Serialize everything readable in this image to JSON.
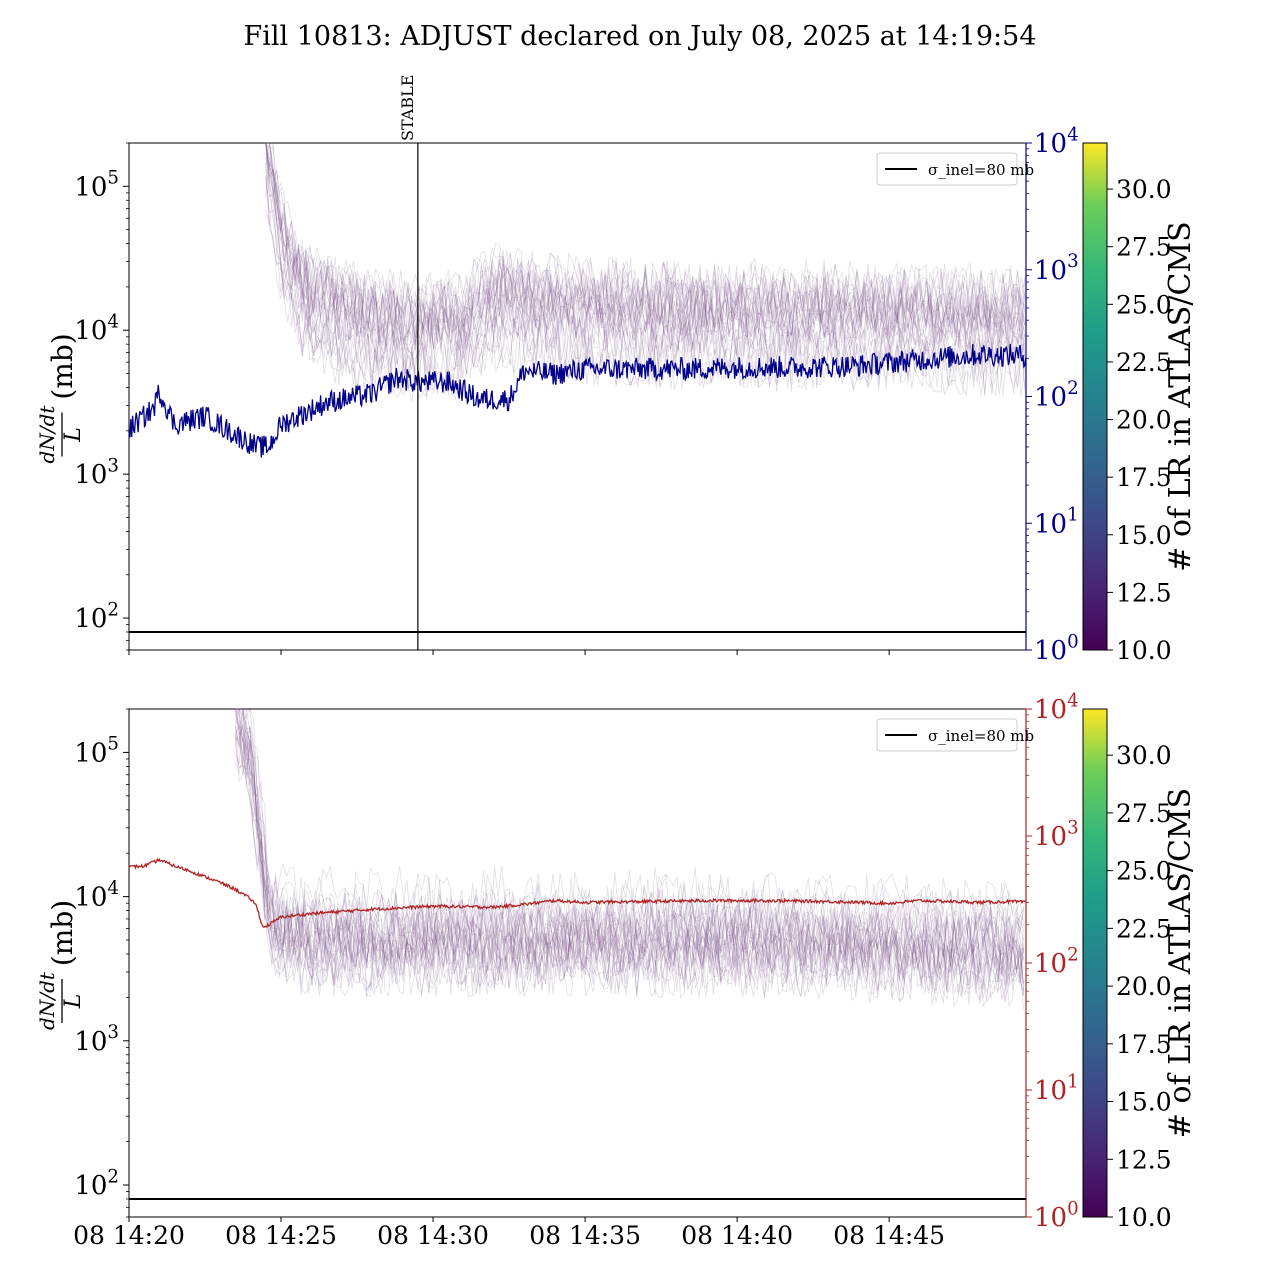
{
  "title": "Fill 10813: ADJUST declared on July 08, 2025 at 14:19:54",
  "x_tick_labels": [
    "08 14:20",
    "08 14:25",
    "08 14:30",
    "08 14:35",
    "08 14:40",
    "08 14:45"
  ],
  "x_range_minutes": [
    0,
    29.5
  ],
  "colors": {
    "blue": "#00008b",
    "red": "#b22222",
    "bundles": "#6b3f7a",
    "black": "#000000"
  },
  "colorbar": {
    "label": "# of LR in ATLAS/CMS",
    "ticks": [
      "10.0",
      "12.5",
      "15.0",
      "17.5",
      "20.0",
      "22.5",
      "25.0",
      "27.5",
      "30.0"
    ],
    "range": [
      10,
      32
    ],
    "colormap": "viridis"
  },
  "chart_data": [
    {
      "type": "line",
      "panel": "top",
      "ylabel_left": "dN/dt / L (mb)",
      "ylim_left": [
        60,
        200000
      ],
      "yscale_left": "log",
      "yticks_left": [
        "10^2",
        "10^3",
        "10^4",
        "10^5"
      ],
      "ylim_right": [
        1,
        10000
      ],
      "yscale_right": "log",
      "yticks_right": [
        "10^0",
        "10^1",
        "10^2",
        "10^3",
        "10^4"
      ],
      "right_axis_color": "#00008b",
      "legend": {
        "label": "σ_inel=80 mb",
        "position": "top-right"
      },
      "hline": {
        "y": 80,
        "label": "σ_inel=80 mb"
      },
      "vline": {
        "x_minutes": 9.5,
        "label": "STABLE"
      },
      "series": [
        {
          "axis": "right",
          "color": "#00008b",
          "x_minutes": [
            0,
            0.8,
            1.0,
            1.5,
            2.5,
            3.5,
            4.2,
            4.6,
            5.0,
            6.5,
            8.0,
            8.8,
            9.5,
            10.5,
            11.5,
            12.5,
            13.0,
            14.0,
            15.0,
            17.0,
            18.5,
            20.0,
            22.0,
            24.0,
            26.0,
            28.0,
            29.5
          ],
          "values": [
            55,
            80,
            110,
            60,
            70,
            50,
            40,
            40,
            60,
            90,
            105,
            140,
            130,
            130,
            95,
            95,
            160,
            150,
            165,
            165,
            165,
            170,
            170,
            175,
            195,
            215,
            210
          ]
        },
        {
          "axis": "left",
          "color": "#6b3f7a",
          "name_note": "bunch bundles",
          "x_minutes": [
            4.5,
            5.0,
            5.5,
            6.0,
            7.0,
            8.0,
            9.5,
            11.0,
            12.0,
            15.0,
            20.0,
            25.0,
            29.5
          ],
          "values": [
            200000,
            40000,
            20000,
            15000,
            12000,
            10000,
            9000,
            10000,
            15000,
            12000,
            11000,
            11000,
            10000
          ]
        }
      ]
    },
    {
      "type": "line",
      "panel": "bottom",
      "ylabel_left": "dN/dt / L (mb)",
      "ylim_left": [
        60,
        200000
      ],
      "yscale_left": "log",
      "yticks_left": [
        "10^2",
        "10^3",
        "10^4",
        "10^5"
      ],
      "ylim_right": [
        1,
        10000
      ],
      "yscale_right": "log",
      "yticks_right": [
        "10^0",
        "10^1",
        "10^2",
        "10^3",
        "10^4"
      ],
      "right_axis_color": "#b22222",
      "legend": {
        "label": "σ_inel=80 mb",
        "position": "top-right"
      },
      "hline": {
        "y": 80,
        "label": "σ_inel=80 mb"
      },
      "series": [
        {
          "axis": "right",
          "color": "#b22222",
          "x_minutes": [
            0,
            0.5,
            1.0,
            1.5,
            2.0,
            3.0,
            3.5,
            4.0,
            4.2,
            4.4,
            4.6,
            5.0,
            6.0,
            8.0,
            10.0,
            12.0,
            13.0,
            14.0,
            15.0,
            17.0,
            19.0,
            21.0,
            23.0,
            25.0,
            26.0,
            27.0,
            28.0,
            29.0,
            29.5
          ],
          "values": [
            570,
            580,
            650,
            580,
            530,
            430,
            380,
            320,
            280,
            190,
            200,
            230,
            245,
            265,
            280,
            275,
            290,
            310,
            300,
            305,
            310,
            310,
            305,
            295,
            310,
            305,
            300,
            305,
            300
          ]
        },
        {
          "axis": "left",
          "color": "#6b3f7a",
          "name_note": "bunch bundles",
          "x_minutes": [
            3.5,
            4.0,
            4.4,
            4.6,
            5.0,
            6.0,
            8.0,
            10.0,
            15.0,
            20.0,
            25.0,
            29.5
          ],
          "values": [
            200000,
            100000,
            20000,
            8000,
            6000,
            5500,
            5500,
            5500,
            5500,
            5500,
            5000,
            4500
          ]
        }
      ]
    }
  ]
}
